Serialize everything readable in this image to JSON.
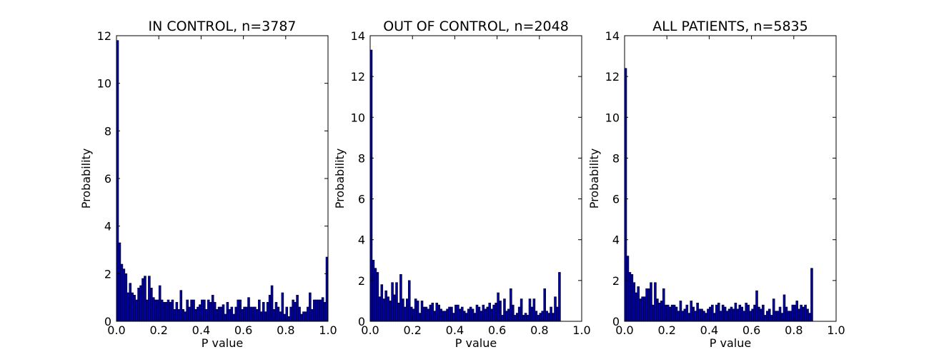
{
  "figure": {
    "bar_fill": "#0000a8",
    "bar_edge": "#000000"
  },
  "chart_data": [
    {
      "type": "bar",
      "title": "IN CONTROL, n=3787",
      "xlabel": "P value",
      "ylabel": "Probability",
      "xlim": [
        0.0,
        1.0
      ],
      "ylim": [
        0,
        12
      ],
      "xticks": [
        "0.0",
        "0.2",
        "0.4",
        "0.6",
        "0.8",
        "1.0"
      ],
      "yticks": [
        "0",
        "2",
        "4",
        "6",
        "8",
        "10",
        "12"
      ],
      "grid": false,
      "bin_width": 0.01,
      "values": [
        11.8,
        3.3,
        2.4,
        2.2,
        2.0,
        1.2,
        1.6,
        1.2,
        1.1,
        0.9,
        1.4,
        1.5,
        1.8,
        1.9,
        0.9,
        1.9,
        1.4,
        1.0,
        0.9,
        0.9,
        1.5,
        0.9,
        0.8,
        0.8,
        0.9,
        0.8,
        0.9,
        0.5,
        0.8,
        0.5,
        1.3,
        0.5,
        0.4,
        0.9,
        0.6,
        0.9,
        0.9,
        0.5,
        0.6,
        0.7,
        0.9,
        0.9,
        0.5,
        0.9,
        0.8,
        1.1,
        0.8,
        0.5,
        0.6,
        0.6,
        0.7,
        0.3,
        0.8,
        0.5,
        0.6,
        0.3,
        0.6,
        0.9,
        0.9,
        0.5,
        0.6,
        0.6,
        1.0,
        0.6,
        0.6,
        0.6,
        0.5,
        0.9,
        0.4,
        0.8,
        0.4,
        0.8,
        1.1,
        1.5,
        0.5,
        0.8,
        0.6,
        0.4,
        1.2,
        0.3,
        0.6,
        0.2,
        0.6,
        0.9,
        0.8,
        1.1,
        0.6,
        0.3,
        0.4,
        0.4,
        0.6,
        1.2,
        0.5,
        0.9,
        0.9,
        0.9,
        0.9,
        1.0,
        0.8,
        2.7
      ]
    },
    {
      "type": "bar",
      "title": "OUT OF CONTROL, n=2048",
      "xlabel": "P value",
      "ylabel": "Probability",
      "xlim": [
        0.0,
        1.0
      ],
      "ylim": [
        0,
        14
      ],
      "xticks": [
        "0.0",
        "0.2",
        "0.4",
        "0.6",
        "0.8",
        "1.0"
      ],
      "yticks": [
        "0",
        "2",
        "4",
        "6",
        "8",
        "10",
        "12",
        "14"
      ],
      "grid": false,
      "bin_width": 0.01,
      "values": [
        13.3,
        3.0,
        2.6,
        2.4,
        1.2,
        1.8,
        1.1,
        1.5,
        1.2,
        1.0,
        1.9,
        1.3,
        1.9,
        0.9,
        2.3,
        1.1,
        0.7,
        1.1,
        2.0,
        0.7,
        0.6,
        1.1,
        1.0,
        0.4,
        1.0,
        0.7,
        0.7,
        0.6,
        0.8,
        0.9,
        0.5,
        0.9,
        0.8,
        0.6,
        0.5,
        0.5,
        0.6,
        0.7,
        0.7,
        0.4,
        0.8,
        0.8,
        0.6,
        0.7,
        0.5,
        0.4,
        0.6,
        0.7,
        0.6,
        0.4,
        0.8,
        0.7,
        0.5,
        0.8,
        0.6,
        0.7,
        0.9,
        0.6,
        0.8,
        0.9,
        1.4,
        1.0,
        0.3,
        1.1,
        0.5,
        0.6,
        1.6,
        0.8,
        0.3,
        0.4,
        0.7,
        1.1,
        0.3,
        0.4,
        0.3,
        1.1,
        0.7,
        1.1,
        0.5,
        0.3,
        0.4,
        0.5,
        1.6,
        0.5,
        0.4,
        0.7,
        0.4,
        1.2,
        0.7,
        2.4
      ]
    },
    {
      "type": "bar",
      "title": "ALL PATIENTS, n=5835",
      "xlabel": "P value",
      "ylabel": "Probability",
      "xlim": [
        0.0,
        1.0
      ],
      "ylim": [
        0,
        14
      ],
      "xticks": [
        "0.0",
        "0.2",
        "0.4",
        "0.6",
        "0.8",
        "1.0"
      ],
      "yticks": [
        "0",
        "2",
        "4",
        "6",
        "8",
        "10",
        "12",
        "14"
      ],
      "grid": false,
      "bin_width": 0.01,
      "values": [
        12.4,
        3.2,
        2.4,
        2.3,
        1.9,
        1.4,
        1.7,
        1.1,
        1.2,
        1.2,
        1.6,
        1.6,
        1.9,
        0.8,
        1.9,
        1.1,
        0.9,
        1.0,
        1.6,
        0.8,
        0.8,
        0.7,
        0.8,
        0.8,
        0.7,
        0.5,
        1.0,
        0.5,
        0.6,
        0.8,
        0.4,
        1.0,
        0.7,
        0.5,
        0.9,
        0.6,
        0.6,
        0.5,
        0.4,
        0.6,
        0.7,
        0.8,
        0.4,
        0.8,
        0.9,
        0.5,
        0.8,
        0.7,
        0.5,
        0.6,
        0.7,
        0.6,
        0.9,
        0.6,
        0.8,
        0.7,
        0.5,
        0.9,
        0.8,
        0.5,
        0.6,
        0.8,
        1.5,
        0.7,
        0.6,
        0.8,
        0.3,
        0.5,
        0.6,
        0.3,
        1.1,
        0.5,
        0.5,
        0.7,
        0.4,
        1.3,
        0.7,
        0.5,
        0.5,
        0.8,
        0.8,
        1.0,
        0.6,
        0.8,
        0.7,
        0.8,
        0.6,
        0.4,
        2.6
      ]
    }
  ]
}
